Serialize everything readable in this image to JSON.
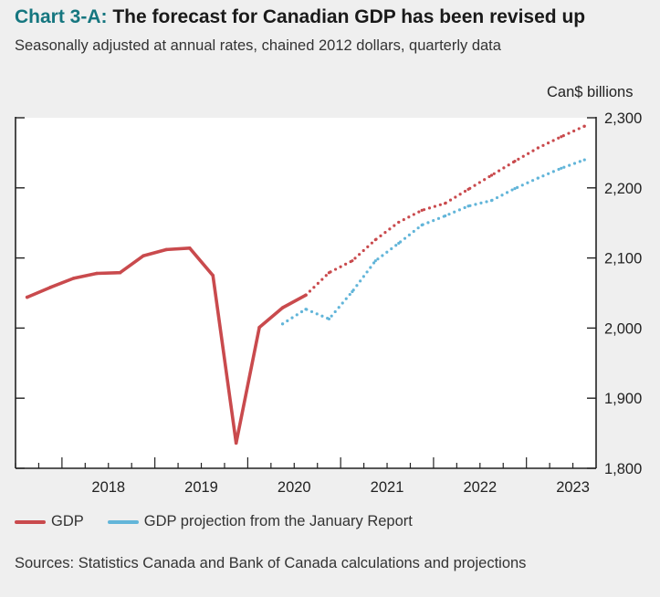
{
  "title": {
    "label": "Chart 3-A:",
    "text": " The forecast for Canadian GDP has been revised up"
  },
  "subtitle": "Seasonally adjusted at annual rates, chained 2012 dollars, quarterly data",
  "source": "Sources: Statistics Canada and Bank of Canada calculations and projections",
  "colors": {
    "gdp": "#c94a4d",
    "projection": "#62b5d9",
    "label": "#15767f"
  },
  "chart_data": {
    "type": "line",
    "ylabel": "Can$ billions",
    "ylim": [
      1800,
      2300
    ],
    "yticks": [
      1800,
      1900,
      2000,
      2100,
      2200,
      2300
    ],
    "ytick_labels": [
      "1,800",
      "1,900",
      "2,000",
      "2,100",
      "2,200",
      "2,300"
    ],
    "y_axis_position": "right",
    "xlim": [
      2017.5,
      2023.75
    ],
    "x_categories": [
      "2018",
      "2019",
      "2020",
      "2021",
      "2022",
      "2023"
    ],
    "grid": false,
    "legend_position": "bottom",
    "series": [
      {
        "name": "GDP",
        "style": "solid",
        "x": [
          2017.625,
          2017.875,
          2018.125,
          2018.375,
          2018.625,
          2018.875,
          2019.125,
          2019.375,
          2019.625,
          2019.875,
          2020.125,
          2020.375,
          2020.625
        ],
        "y": [
          2044,
          2058,
          2071,
          2078,
          2079,
          2103,
          2112,
          2114,
          2075,
          1836,
          2001,
          2029,
          2047
        ]
      },
      {
        "name": "GDP (projection)",
        "legend": false,
        "style": "dotted",
        "x": [
          2020.625,
          2020.875,
          2021.125,
          2021.375,
          2021.625,
          2021.875,
          2022.125,
          2022.375,
          2022.625,
          2022.875,
          2023.125,
          2023.375,
          2023.625
        ],
        "y": [
          2047,
          2079,
          2096,
          2126,
          2151,
          2168,
          2178,
          2198,
          2218,
          2238,
          2257,
          2273,
          2288
        ]
      },
      {
        "name": "GDP projection from the January Report",
        "style": "dotted",
        "x": [
          2020.375,
          2020.625,
          2020.875,
          2021.125,
          2021.375,
          2021.625,
          2021.875,
          2022.125,
          2022.375,
          2022.625,
          2022.875,
          2023.125,
          2023.375,
          2023.625
        ],
        "y": [
          2006,
          2027,
          2013,
          2052,
          2096,
          2121,
          2147,
          2160,
          2174,
          2182,
          2199,
          2214,
          2228,
          2240
        ]
      }
    ]
  }
}
